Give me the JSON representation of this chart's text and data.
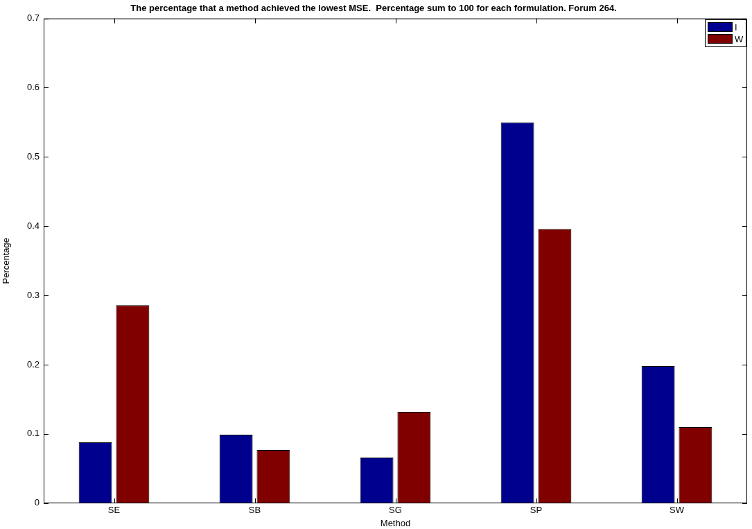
{
  "chart_data": {
    "type": "bar",
    "title": "The percentage that a method achieved the lowest MSE.  Percentage sum to 100 for each formulation. Forum 264.",
    "xlabel": "Method",
    "ylabel": "Percentage",
    "categories": [
      "SE",
      "SB",
      "SG",
      "SP",
      "SW"
    ],
    "series": [
      {
        "name": "I",
        "color": "#00008f",
        "values": [
          0.088,
          0.099,
          0.066,
          0.55,
          0.198
        ]
      },
      {
        "name": "W",
        "color": "#800000",
        "values": [
          0.286,
          0.077,
          0.132,
          0.396,
          0.11
        ]
      }
    ],
    "ylim": [
      0,
      0.7
    ],
    "yticks": [
      0,
      0.1,
      0.2,
      0.3,
      0.4,
      0.5,
      0.6,
      0.7
    ],
    "grid": false,
    "legend": "top right"
  }
}
